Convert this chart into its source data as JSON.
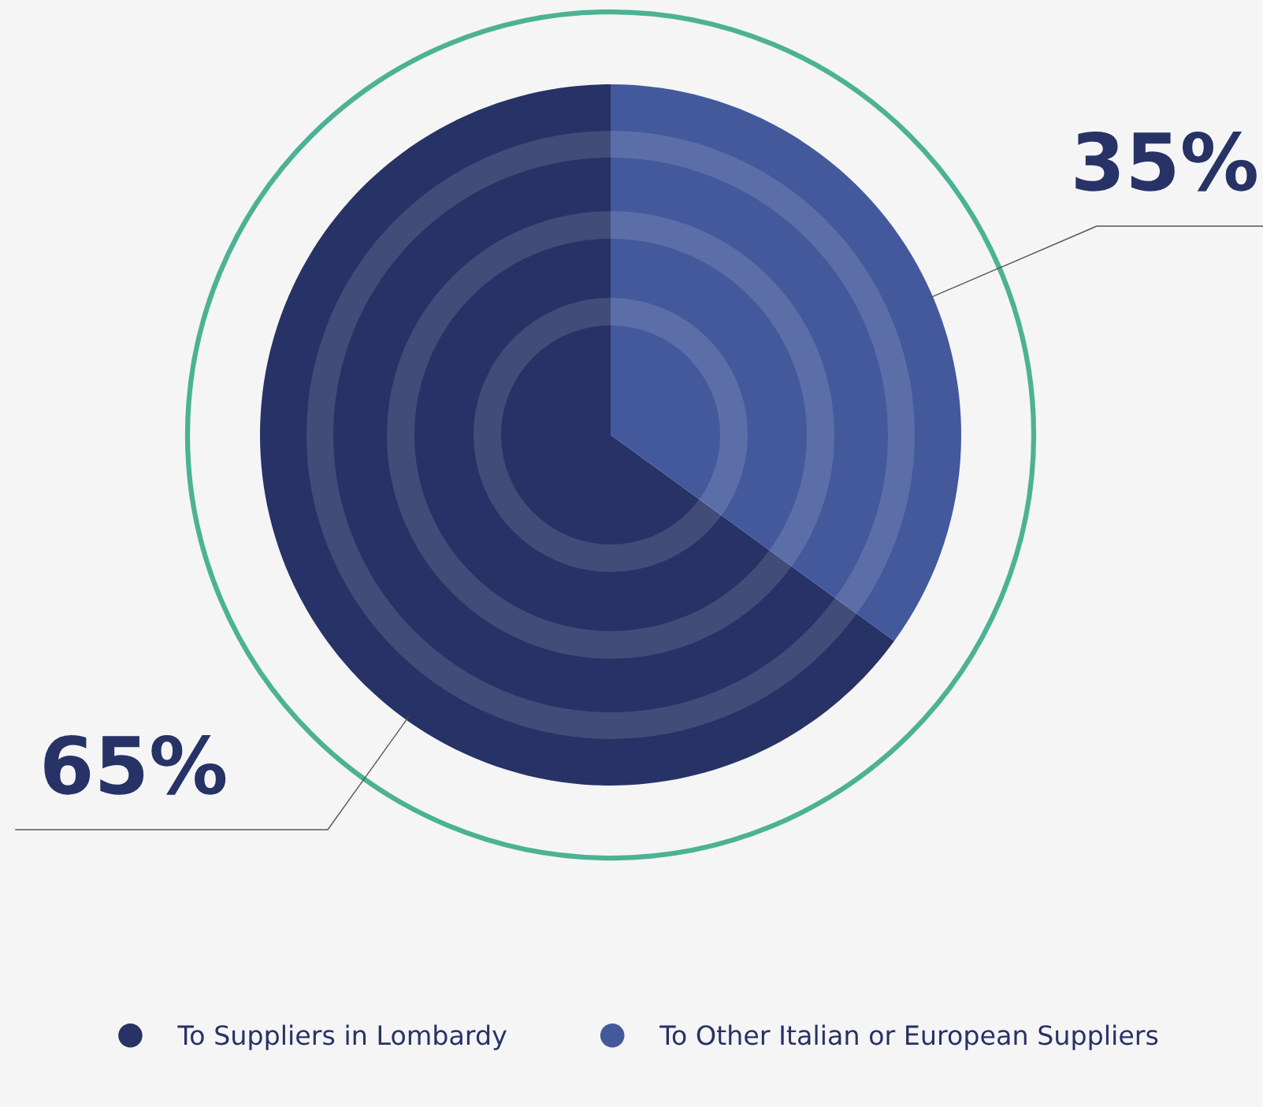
{
  "chart_data": {
    "type": "pie",
    "categories": [
      "To Suppliers in Lombardy",
      "To Other Italian or European Suppliers"
    ],
    "values": [
      65,
      35
    ],
    "colors": [
      "#273266",
      "#43599c"
    ],
    "value_labels": [
      "65%",
      "35%"
    ],
    "legend": "bottom"
  }
}
